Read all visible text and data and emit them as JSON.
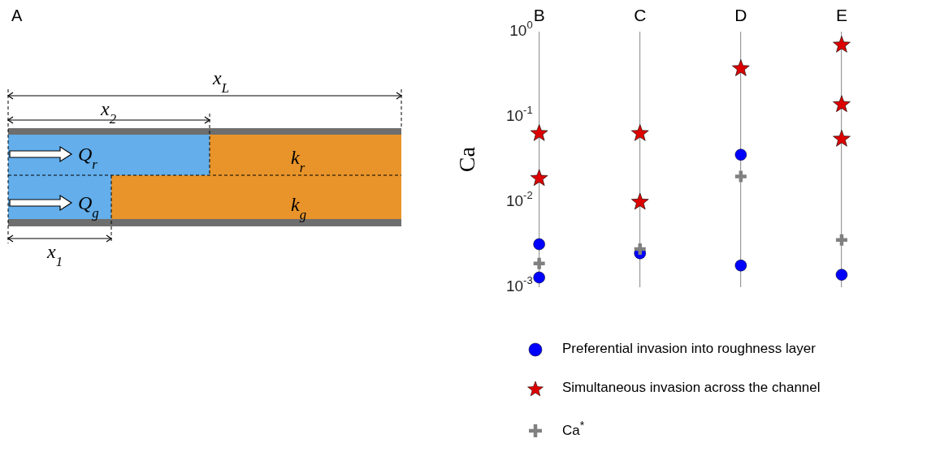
{
  "chart_data": [
    {
      "type": "other",
      "title": "A",
      "annotations": [
        "x$_{L}$",
        "x$_{2}$",
        "Q$_{r}$",
        "Q$_{g}$",
        "k$_{r}$",
        "k$_{g}$",
        "x$_{1}$"
      ]
    },
    {
      "type": "scatter",
      "categories": [
        "B",
        "C",
        "D",
        "E"
      ],
      "ylabel": "Ca",
      "log": "y",
      "ylim": [
        0.001,
        1
      ],
      "yticks": [
        {
          "value": 0.001,
          "label": "10$^{-3}$"
        },
        {
          "value": 0.01,
          "label": "10$^{-2}$"
        },
        {
          "value": 0.1,
          "label": "10$^{-1}$"
        },
        {
          "value": 1,
          "label": "10$^{0}$"
        }
      ],
      "grid": "x",
      "legend": "bottom",
      "series": [
        {
          "name": "Preferential invasion into roughness layer",
          "color": "#0000ff",
          "marker": "circle",
          "x": [
            "B",
            "B",
            "C",
            "D",
            "D",
            "E"
          ],
          "values": [
            0.0032,
            0.0013,
            0.0025,
            0.036,
            0.0018,
            0.0014
          ]
        },
        {
          "name": "Simultaneous invasion across the channel",
          "color": "#dd0000",
          "marker": "star",
          "x": [
            "B",
            "B",
            "C",
            "C",
            "D",
            "E",
            "E",
            "E"
          ],
          "values": [
            0.064,
            0.019,
            0.064,
            0.01,
            0.37,
            0.7,
            0.14,
            0.055
          ]
        },
        {
          "name": "Ca$^{*}$",
          "color": "#808080",
          "marker": "cross",
          "x": [
            "B",
            "C",
            "D",
            "E"
          ],
          "values": [
            0.0019,
            0.0028,
            0.02,
            0.0036
          ]
        }
      ]
    }
  ]
}
